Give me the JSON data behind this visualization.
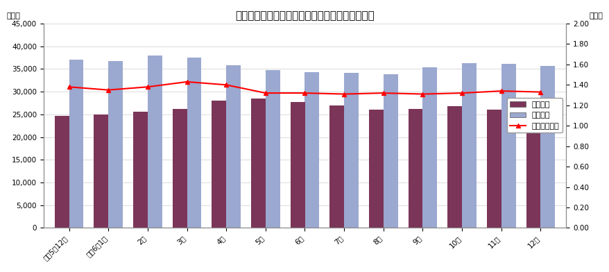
{
  "title": "有効求職・求人・求人倍率（季節調整値）の推移",
  "categories": [
    "令和5年12月",
    "令和6年1月",
    "2月",
    "3月",
    "4月",
    "5月",
    "6月",
    "7月",
    "8月",
    "9月",
    "10月",
    "11月",
    "12月"
  ],
  "yukyu_kyushoku": [
    24700,
    25000,
    25600,
    26200,
    28100,
    28500,
    27700,
    26900,
    26000,
    26200,
    26800,
    26000,
    24500
  ],
  "yukyu_kyujin": [
    37000,
    36800,
    38000,
    37500,
    35900,
    34800,
    34300,
    34100,
    33800,
    35300,
    36300,
    36100,
    35600
  ],
  "yukyu_ratio": [
    1.38,
    1.35,
    1.38,
    1.43,
    1.4,
    1.32,
    1.32,
    1.31,
    1.32,
    1.31,
    1.32,
    1.34,
    1.33
  ],
  "bar_color_kyushoku": "#7B3558",
  "bar_color_kyujin": "#9BA8D0",
  "line_color_ratio": "#FF0000",
  "left_ylabel": "（人）",
  "right_ylabel": "（倍）",
  "ylim_left": [
    0,
    45000
  ],
  "ylim_right": [
    0.0,
    2.0
  ],
  "yticks_left": [
    0,
    5000,
    10000,
    15000,
    20000,
    25000,
    30000,
    35000,
    40000,
    45000
  ],
  "yticks_right": [
    0.0,
    0.2,
    0.4,
    0.6,
    0.8,
    1.0,
    1.2,
    1.4,
    1.6,
    1.8,
    2.0
  ],
  "legend_labels": [
    "有効求職",
    "有効求人",
    "有効求人倍率"
  ],
  "background_color": "#FFFFFF",
  "title_fontsize": 11,
  "tick_fontsize": 7.5,
  "label_fontsize": 8,
  "legend_fontsize": 8
}
